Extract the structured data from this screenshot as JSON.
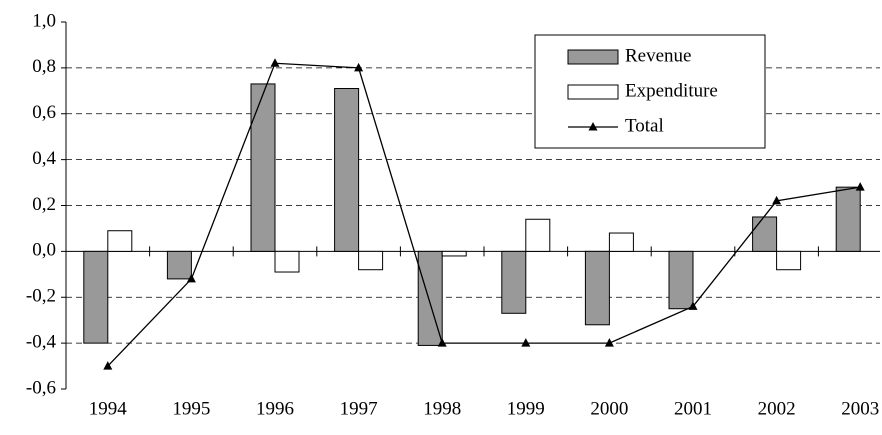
{
  "chart_data": {
    "type": "bar",
    "categories": [
      "1994",
      "1995",
      "1996",
      "1997",
      "1998",
      "1999",
      "2000",
      "2001",
      "2002",
      "2003"
    ],
    "series": [
      {
        "name": "Revenue",
        "color": "#999999",
        "values": [
          -0.4,
          -0.12,
          0.73,
          0.71,
          -0.41,
          -0.27,
          -0.32,
          -0.25,
          0.15,
          0.28
        ]
      },
      {
        "name": "Expenditure",
        "color": "#ffffff",
        "values": [
          0.09,
          0,
          -0.09,
          -0.08,
          -0.02,
          0.14,
          0.08,
          0,
          -0.08,
          0
        ]
      },
      {
        "name": "Total",
        "color": "#000000",
        "type": "line",
        "values": [
          -0.5,
          -0.12,
          0.82,
          0.8,
          -0.4,
          -0.4,
          -0.4,
          -0.24,
          0.22,
          0.28
        ]
      }
    ],
    "ylim": [
      -0.6,
      1.0
    ],
    "yticks": [
      {
        "value": -0.6,
        "label": "-0,6"
      },
      {
        "value": -0.4,
        "label": "-0,4"
      },
      {
        "value": -0.2,
        "label": "-0,2"
      },
      {
        "value": 0,
        "label": "0,0"
      },
      {
        "value": 0.2,
        "label": "0,2"
      },
      {
        "value": 0.4,
        "label": "0,4"
      },
      {
        "value": 0.6,
        "label": "0,6"
      },
      {
        "value": 0.8,
        "label": "0,8"
      },
      {
        "value": 1.0,
        "label": "1,0"
      }
    ],
    "grid": true,
    "legend": "top-right"
  }
}
